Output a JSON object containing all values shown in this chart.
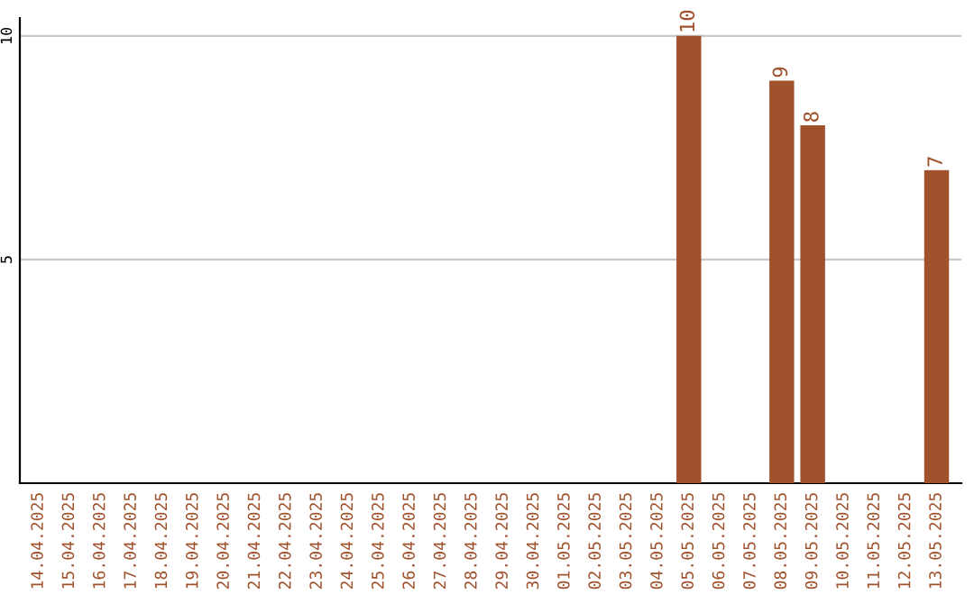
{
  "chart_data": {
    "type": "bar",
    "categories": [
      "14.04.2025",
      "15.04.2025",
      "16.04.2025",
      "17.04.2025",
      "18.04.2025",
      "19.04.2025",
      "20.04.2025",
      "21.04.2025",
      "22.04.2025",
      "23.04.2025",
      "24.04.2025",
      "25.04.2025",
      "26.04.2025",
      "27.04.2025",
      "28.04.2025",
      "29.04.2025",
      "30.04.2025",
      "01.05.2025",
      "02.05.2025",
      "03.05.2025",
      "04.05.2025",
      "05.05.2025",
      "06.05.2025",
      "07.05.2025",
      "08.05.2025",
      "09.05.2025",
      "10.05.2025",
      "11.05.2025",
      "12.05.2025",
      "13.05.2025"
    ],
    "values": [
      0,
      0,
      0,
      0,
      0,
      0,
      0,
      0,
      0,
      0,
      0,
      0,
      0,
      0,
      0,
      0,
      0,
      0,
      0,
      0,
      0,
      10,
      0,
      0,
      9,
      8,
      0,
      0,
      0,
      7
    ],
    "value_labels": [
      null,
      null,
      null,
      null,
      null,
      null,
      null,
      null,
      null,
      null,
      null,
      null,
      null,
      null,
      null,
      null,
      null,
      null,
      null,
      null,
      null,
      "10",
      null,
      null,
      "9",
      "8",
      null,
      null,
      null,
      "7"
    ],
    "color": "#a0522d",
    "ylim": [
      0,
      10.4
    ],
    "yticks": [
      5,
      10
    ],
    "grid": "y"
  }
}
